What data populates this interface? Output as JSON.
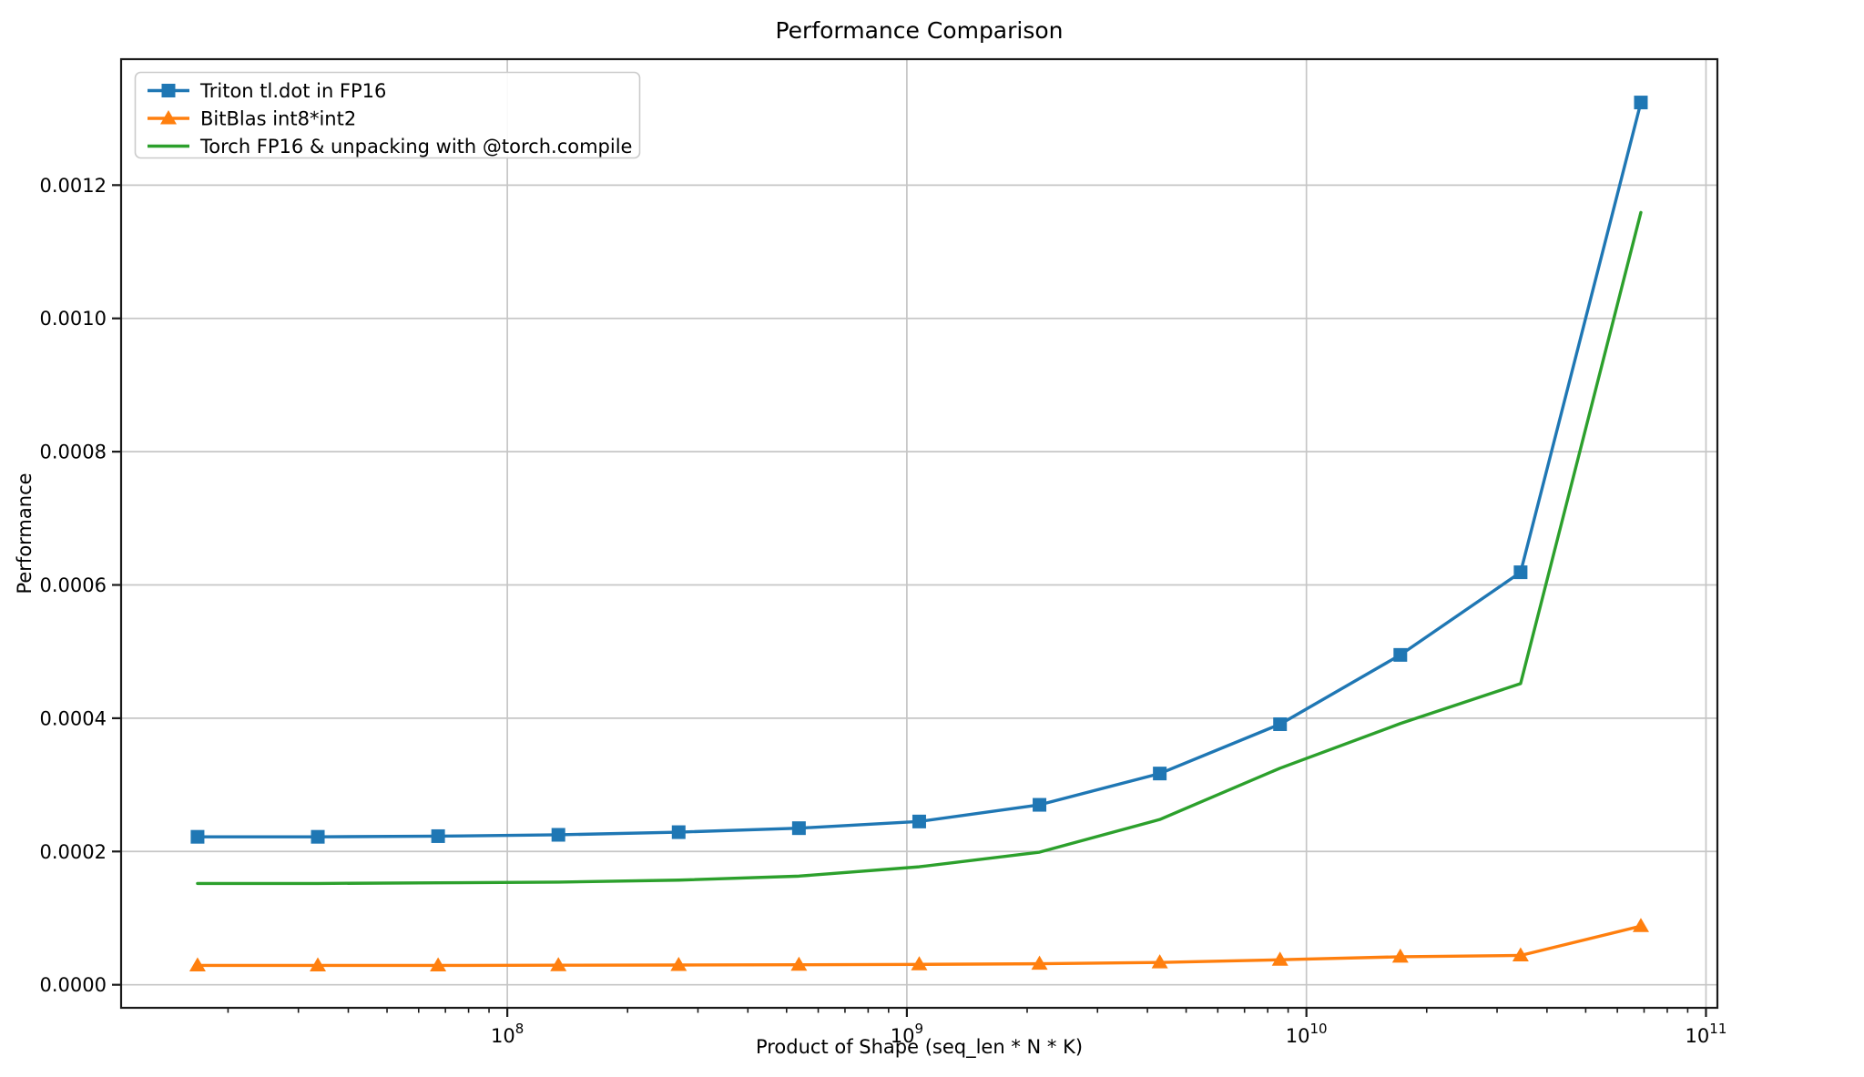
{
  "chart_data": {
    "type": "line",
    "title": "Performance Comparison",
    "xlabel": "Product of Shape (seq_len * N * K)",
    "ylabel": "Performance",
    "x_scale": "log",
    "grid": true,
    "legend_position": "upper left",
    "xlim": [
      10800000,
      106800000000
    ],
    "ylim": [
      -3.46e-05,
      0.001389
    ],
    "x_major_ticks": [
      {
        "value": 100000000,
        "base": "10",
        "exp": "8"
      },
      {
        "value": 1000000000,
        "base": "10",
        "exp": "9"
      },
      {
        "value": 10000000000,
        "base": "10",
        "exp": "10"
      },
      {
        "value": 100000000000,
        "base": "10",
        "exp": "11"
      }
    ],
    "y_ticks": [
      {
        "value": 0.0,
        "label": "0.0000"
      },
      {
        "value": 0.0002,
        "label": "0.0002"
      },
      {
        "value": 0.0004,
        "label": "0.0004"
      },
      {
        "value": 0.0006,
        "label": "0.0006"
      },
      {
        "value": 0.0008,
        "label": "0.0008"
      },
      {
        "value": 0.001,
        "label": "0.0010"
      },
      {
        "value": 0.0012,
        "label": "0.0012"
      }
    ],
    "x": [
      16777216,
      33554432,
      67108864,
      134217728,
      268435456,
      536870912,
      1073741824,
      2147483648,
      4294967296,
      8589934592,
      17179869184,
      34359738368,
      68719476736
    ],
    "series": [
      {
        "name": "Triton tl.dot in FP16",
        "color": "#1f77b4",
        "marker": "square",
        "values": [
          0.000222,
          0.000222,
          0.000223,
          0.000225,
          0.000229,
          0.000235,
          0.000245,
          0.00027,
          0.000317,
          0.000391,
          0.000495,
          0.000619,
          0.001324
        ]
      },
      {
        "name": "BitBlas int8*int2",
        "color": "#ff7f0e",
        "marker": "triangle",
        "values": [
          2.9e-05,
          2.9e-05,
          2.9e-05,
          2.93e-05,
          2.96e-05,
          3e-05,
          3.06e-05,
          3.15e-05,
          3.35e-05,
          3.75e-05,
          4.2e-05,
          4.4e-05,
          8.8e-05
        ]
      },
      {
        "name": "Torch FP16 & unpacking with @torch.compile",
        "color": "#2ca02c",
        "marker": "none",
        "values": [
          0.000152,
          0.000152,
          0.000153,
          0.000154,
          0.000157,
          0.000163,
          0.000177,
          0.000199,
          0.000248,
          0.000325,
          0.000392,
          0.000452,
          0.001159
        ]
      }
    ],
    "grid_color": "#c6c6c6",
    "spine_color": "#1a1a1a",
    "text_color": "#000000"
  }
}
